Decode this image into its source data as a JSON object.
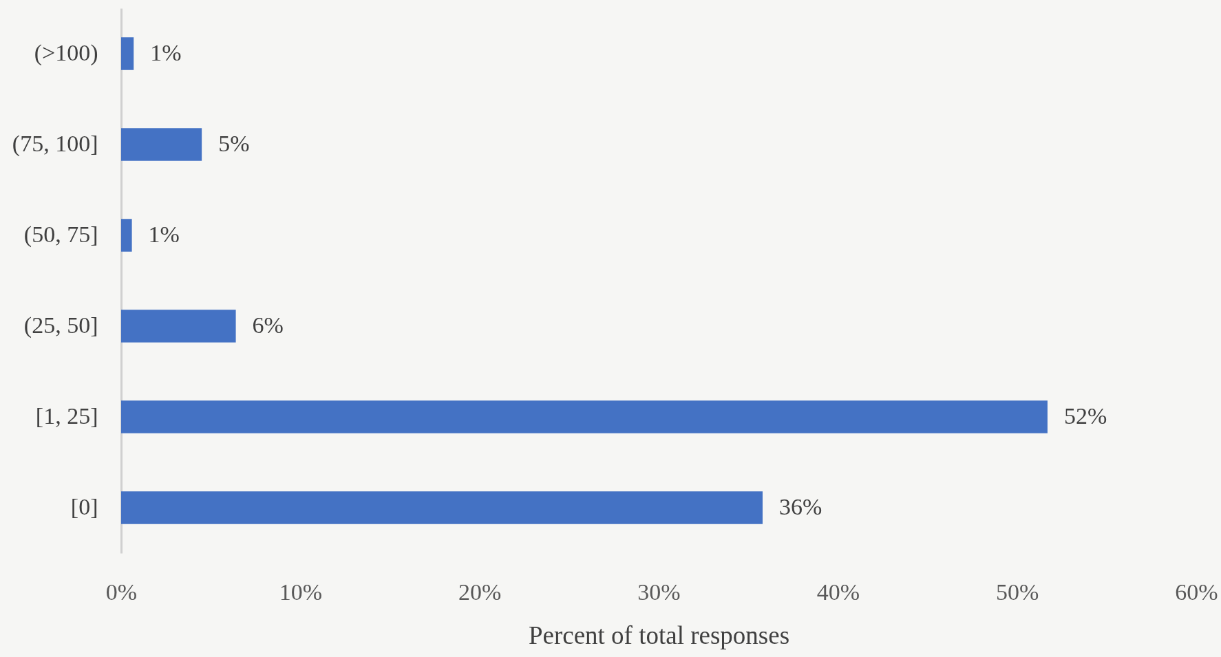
{
  "chart_data": {
    "type": "bar",
    "orientation": "horizontal",
    "categories": [
      "(>100)",
      "(75, 100]",
      "(50, 75]",
      "(25, 50]",
      "[1, 25]",
      "[0]"
    ],
    "values": [
      0.7,
      4.5,
      0.6,
      6.4,
      51.7,
      35.8
    ],
    "value_labels": [
      "1%",
      "5%",
      "1%",
      "6%",
      "52%",
      "36%"
    ],
    "color": "#4472c4",
    "xlabel": "Percent of total responses",
    "xlim": [
      0,
      60
    ],
    "xticks": [
      {
        "value": 0,
        "label": "0%"
      },
      {
        "value": 10,
        "label": "10%"
      },
      {
        "value": 20,
        "label": "20%"
      },
      {
        "value": 30,
        "label": "30%"
      },
      {
        "value": 40,
        "label": "40%"
      },
      {
        "value": 50,
        "label": "50%"
      },
      {
        "value": 60,
        "label": "60%"
      }
    ]
  }
}
